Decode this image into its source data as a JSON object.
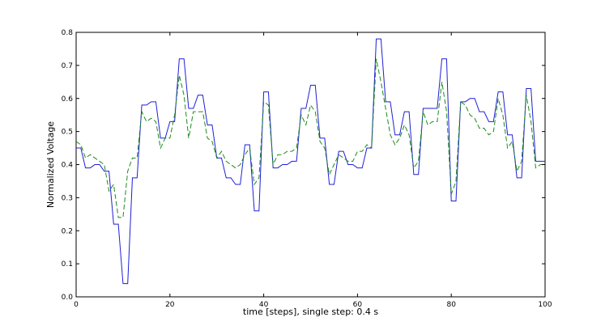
{
  "chart_data": {
    "type": "line",
    "title": "",
    "xlabel": "time [steps], single step: 0.4 s",
    "ylabel": "Normalized Voltage",
    "xlim": [
      0,
      100
    ],
    "ylim": [
      0.0,
      0.8
    ],
    "xticks": [
      0,
      20,
      40,
      60,
      80,
      100
    ],
    "yticks": [
      0.0,
      0.1,
      0.2,
      0.3,
      0.4,
      0.5,
      0.6,
      0.7,
      0.8
    ],
    "xtick_labels": [
      "0",
      "20",
      "40",
      "60",
      "80",
      "100"
    ],
    "ytick_labels": [
      "0.0",
      "0.1",
      "0.2",
      "0.3",
      "0.4",
      "0.5",
      "0.6",
      "0.7",
      "0.8"
    ],
    "grid": false,
    "legend": "none",
    "x": [
      0,
      1,
      2,
      3,
      4,
      5,
      6,
      7,
      8,
      9,
      10,
      11,
      12,
      13,
      14,
      15,
      16,
      17,
      18,
      19,
      20,
      21,
      22,
      23,
      24,
      25,
      26,
      27,
      28,
      29,
      30,
      31,
      32,
      33,
      34,
      35,
      36,
      37,
      38,
      39,
      40,
      41,
      42,
      43,
      44,
      45,
      46,
      47,
      48,
      49,
      50,
      51,
      52,
      53,
      54,
      55,
      56,
      57,
      58,
      59,
      60,
      61,
      62,
      63,
      64,
      65,
      66,
      67,
      68,
      69,
      70,
      71,
      72,
      73,
      74,
      75,
      76,
      77,
      78,
      79,
      80,
      81,
      82,
      83,
      84,
      85,
      86,
      87,
      88,
      89,
      90,
      91,
      92,
      93,
      94,
      95,
      96,
      97,
      98,
      99,
      100
    ],
    "series": [
      {
        "color": "#1f1fd6",
        "dash": "solid",
        "values": [
          0.45,
          0.45,
          0.39,
          0.39,
          0.4,
          0.4,
          0.38,
          0.38,
          0.22,
          0.22,
          0.04,
          0.04,
          0.36,
          0.36,
          0.58,
          0.58,
          0.59,
          0.59,
          0.48,
          0.48,
          0.53,
          0.53,
          0.72,
          0.72,
          0.57,
          0.57,
          0.61,
          0.61,
          0.52,
          0.52,
          0.42,
          0.42,
          0.36,
          0.36,
          0.34,
          0.34,
          0.46,
          0.46,
          0.26,
          0.26,
          0.62,
          0.62,
          0.39,
          0.39,
          0.4,
          0.4,
          0.41,
          0.41,
          0.57,
          0.57,
          0.64,
          0.64,
          0.48,
          0.48,
          0.34,
          0.34,
          0.44,
          0.44,
          0.4,
          0.4,
          0.39,
          0.39,
          0.45,
          0.45,
          0.78,
          0.78,
          0.59,
          0.59,
          0.49,
          0.49,
          0.56,
          0.56,
          0.37,
          0.37,
          0.57,
          0.57,
          0.57,
          0.57,
          0.72,
          0.72,
          0.29,
          0.29,
          0.59,
          0.59,
          0.6,
          0.6,
          0.56,
          0.56,
          0.53,
          0.53,
          0.62,
          0.62,
          0.49,
          0.49,
          0.36,
          0.36,
          0.63,
          0.63,
          0.41,
          0.41,
          0.41
        ]
      },
      {
        "color": "#1a8c1a",
        "dash": "dashed",
        "values": [
          0.47,
          0.46,
          0.42,
          0.43,
          0.42,
          0.41,
          0.4,
          0.32,
          0.34,
          0.24,
          0.24,
          0.38,
          0.42,
          0.42,
          0.56,
          0.53,
          0.54,
          0.53,
          0.45,
          0.48,
          0.48,
          0.55,
          0.67,
          0.61,
          0.48,
          0.56,
          0.56,
          0.56,
          0.48,
          0.47,
          0.42,
          0.44,
          0.41,
          0.4,
          0.39,
          0.4,
          0.43,
          0.45,
          0.34,
          0.36,
          0.59,
          0.58,
          0.4,
          0.43,
          0.43,
          0.44,
          0.44,
          0.45,
          0.55,
          0.52,
          0.58,
          0.56,
          0.47,
          0.45,
          0.37,
          0.4,
          0.43,
          0.42,
          0.41,
          0.41,
          0.44,
          0.44,
          0.46,
          0.45,
          0.72,
          0.65,
          0.57,
          0.49,
          0.46,
          0.48,
          0.52,
          0.49,
          0.39,
          0.41,
          0.56,
          0.52,
          0.53,
          0.53,
          0.65,
          0.56,
          0.31,
          0.35,
          0.59,
          0.58,
          0.55,
          0.54,
          0.51,
          0.51,
          0.49,
          0.5,
          0.6,
          0.55,
          0.45,
          0.47,
          0.38,
          0.41,
          0.61,
          0.53,
          0.39,
          0.4,
          0.4
        ]
      }
    ]
  }
}
